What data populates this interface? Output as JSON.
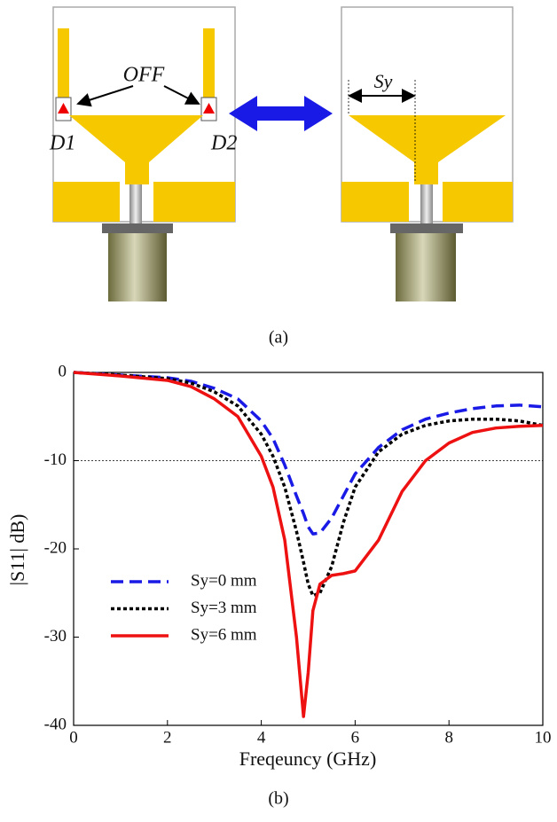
{
  "diagram": {
    "off_label": "OFF",
    "d1_label": "D1",
    "d2_label": "D2",
    "sy_label": "Sy"
  },
  "captions": {
    "a": "(a)",
    "b": "(b)"
  },
  "chart_data": {
    "type": "line",
    "x_label": "Freqeuncy (GHz)",
    "y_label": "|S11| dB)",
    "x": [
      0,
      1,
      2,
      2.5,
      3,
      3.5,
      4,
      4.25,
      4.5,
      4.75,
      4.9,
      5,
      5.1,
      5.25,
      5.5,
      5.75,
      6,
      6.5,
      7,
      7.5,
      8,
      8.5,
      9,
      9.5,
      10
    ],
    "series": [
      {
        "name": "Sy=0 mm",
        "color": "#1a1ae6",
        "style": "dashed",
        "values": [
          0,
          -0.3,
          -0.6,
          -1,
          -1.8,
          -3,
          -5.5,
          -7.5,
          -10.5,
          -14,
          -16,
          -17.5,
          -18.3,
          -18.2,
          -16.5,
          -14,
          -11.5,
          -8.5,
          -6.5,
          -5.3,
          -4.6,
          -4.1,
          -3.8,
          -3.7,
          -3.9
        ]
      },
      {
        "name": "Sy=3 mm",
        "color": "#000000",
        "style": "dotted",
        "values": [
          0,
          -0.3,
          -0.7,
          -1.2,
          -2.2,
          -3.8,
          -7,
          -9.5,
          -13,
          -18,
          -21.5,
          -24,
          -25.3,
          -25,
          -22,
          -17,
          -13,
          -9,
          -7,
          -6,
          -5.5,
          -5.3,
          -5.3,
          -5.5,
          -6
        ]
      },
      {
        "name": "Sy=6 mm",
        "color": "#ee1111",
        "style": "solid",
        "values": [
          0,
          -0.4,
          -0.9,
          -1.6,
          -3,
          -5,
          -9.5,
          -13,
          -19,
          -30,
          -39,
          -34,
          -27,
          -24,
          -23,
          -22.8,
          -22.5,
          -19,
          -13.5,
          -10,
          -8,
          -6.8,
          -6.3,
          -6.1,
          -6
        ]
      }
    ],
    "xlim": [
      0,
      10
    ],
    "xticks": [
      0,
      2,
      4,
      6,
      8,
      10
    ],
    "ylim": [
      -40,
      0
    ],
    "yticks": [
      -40,
      -30,
      -20,
      -10,
      0
    ],
    "hline": -10
  }
}
